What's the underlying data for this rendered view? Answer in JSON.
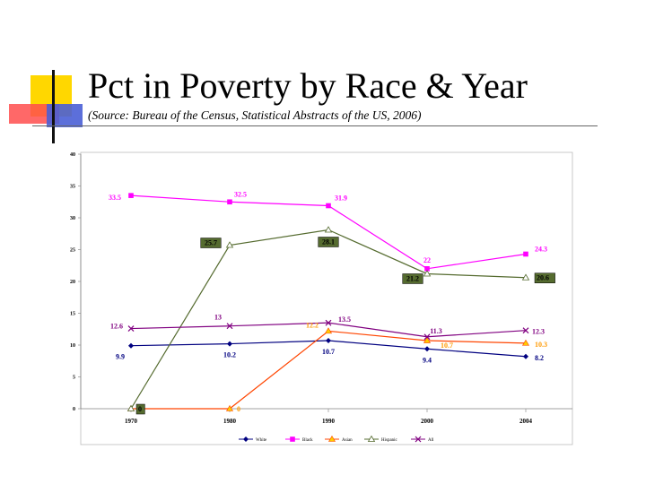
{
  "slide": {
    "title": "Pct in Poverty by Race & Year",
    "subtitle": "(Source: Bureau of the Census, Statistical Abstracts of the US, 2006)"
  },
  "chart_data": {
    "type": "line",
    "x": [
      "1970",
      "1980",
      "1990",
      "2000",
      "2004"
    ],
    "ylim": [
      0,
      40
    ],
    "y_ticks": [
      "0",
      "5",
      "10",
      "15",
      "20",
      "25",
      "30",
      "35",
      "40"
    ],
    "grid": false,
    "legend_position": "bottom",
    "series": [
      {
        "name": "White",
        "values": [
          9.9,
          10.2,
          10.7,
          9.4,
          8.2
        ],
        "labels": [
          "9.9",
          "10.2",
          "10.7",
          "9.4",
          "8.2"
        ],
        "color": "#000080",
        "marker": "diamond"
      },
      {
        "name": "Black",
        "values": [
          33.5,
          32.5,
          31.9,
          22,
          24.3
        ],
        "labels": [
          "33.5",
          "32.5",
          "31.9",
          "22",
          "24.3"
        ],
        "color": "#ff00ff",
        "marker": "square"
      },
      {
        "name": "Asian",
        "values": [
          0,
          0,
          12.2,
          10.7,
          10.3
        ],
        "labels": [
          "0",
          "0",
          "12.2",
          "10.7",
          "10.3"
        ],
        "color": "#ff4500",
        "marker": "triangle"
      },
      {
        "name": "Hispanic",
        "values": [
          0,
          25.7,
          28.1,
          21.2,
          20.6
        ],
        "labels": [
          "0",
          "25.7",
          "28.1",
          "21.2",
          "20.6"
        ],
        "color": "#556b2f",
        "marker": "triangle-open"
      },
      {
        "name": "All",
        "values": [
          12.6,
          13,
          13.5,
          11.3,
          12.3
        ],
        "labels": [
          "12.6",
          "13",
          "13.5",
          "11.3",
          "12.3"
        ],
        "color": "#800080",
        "marker": "x"
      }
    ]
  }
}
